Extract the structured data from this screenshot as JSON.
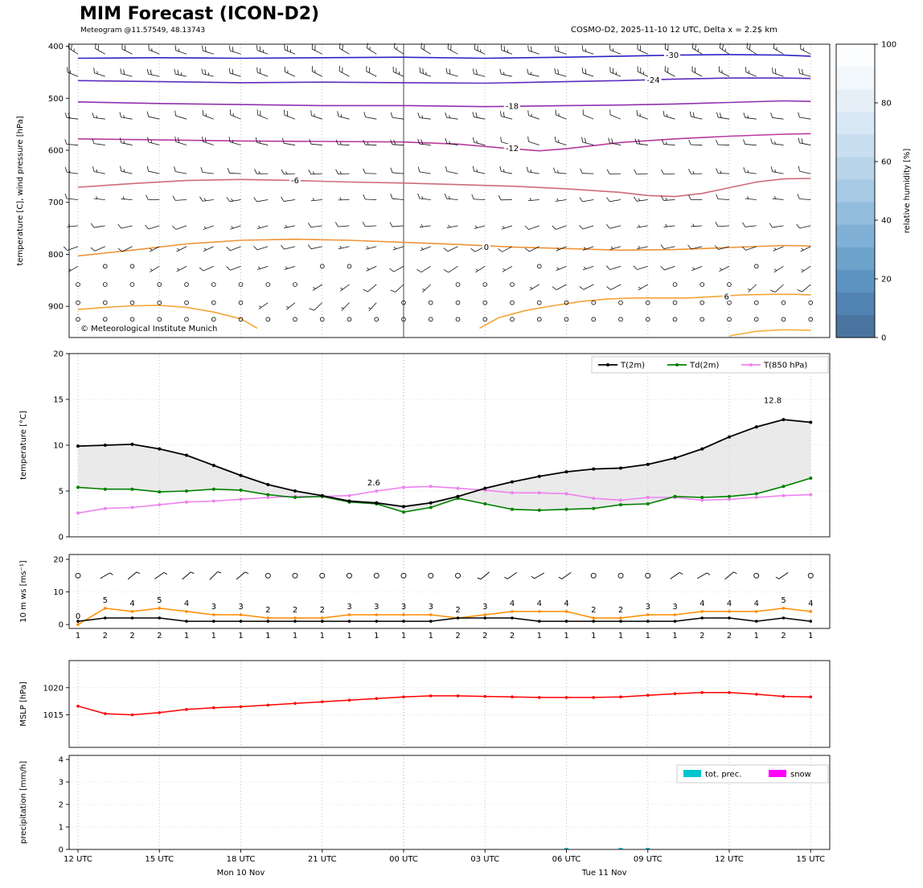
{
  "header": {
    "title": "MIM Forecast (ICON-D2)",
    "subtitle": "Meteogram @11.57549, 48.13743",
    "model_info": "COSMO-D2, 2025-11-10 12 UTC, Delta x = 2.2$ km",
    "watermark": "© Meteorological Institute Munich"
  },
  "time_axis": {
    "hours_span": 27,
    "tick_positions_h": [
      0,
      3,
      6,
      9,
      12,
      15,
      18,
      21,
      24,
      27
    ],
    "tick_labels": [
      "12 UTC",
      "15 UTC",
      "18 UTC",
      "21 UTC",
      "00 UTC",
      "03 UTC",
      "06 UTC",
      "09 UTC",
      "12 UTC",
      "15 UTC"
    ],
    "day_labels": [
      {
        "label": "Mon 10 Nov",
        "pos_h": 6
      },
      {
        "label": "Tue 11 Nov",
        "pos_h": 19.4
      }
    ]
  },
  "chart_data": [
    {
      "id": "upper_air",
      "type": "contour-barbs",
      "ylabel": "temperature [C], wind pressure [hPa]",
      "ylim": [
        960,
        400
      ],
      "yticks": [
        400,
        500,
        600,
        700,
        800,
        900
      ],
      "contours": [
        {
          "label": "-30",
          "color": "#2d23c5",
          "label_h": 21.9,
          "label_p": 417,
          "points": [
            [
              0,
              423
            ],
            [
              3,
              422
            ],
            [
              6,
              423
            ],
            [
              9,
              422
            ],
            [
              12,
              421
            ],
            [
              15,
              423
            ],
            [
              18,
              421
            ],
            [
              20,
              419
            ],
            [
              22,
              417
            ],
            [
              24,
              416
            ],
            [
              26,
              417
            ],
            [
              27,
              419
            ]
          ]
        },
        {
          "label": "-24",
          "color": "#5d2dbf",
          "label_h": 21.2,
          "label_p": 465,
          "points": [
            [
              0,
              466
            ],
            [
              3,
              468
            ],
            [
              6,
              470
            ],
            [
              9,
              469
            ],
            [
              12,
              470
            ],
            [
              15,
              471
            ],
            [
              18,
              468
            ],
            [
              20,
              466
            ],
            [
              22,
              463
            ],
            [
              24,
              461
            ],
            [
              26,
              461
            ],
            [
              27,
              462
            ]
          ]
        },
        {
          "label": "-18",
          "color": "#9031b0",
          "label_h": 16.0,
          "label_p": 515,
          "points": [
            [
              0,
              507
            ],
            [
              3,
              510
            ],
            [
              6,
              512
            ],
            [
              9,
              514
            ],
            [
              12,
              514
            ],
            [
              15,
              516
            ],
            [
              18,
              514
            ],
            [
              20,
              513
            ],
            [
              22,
              511
            ],
            [
              24,
              508
            ],
            [
              26,
              505
            ],
            [
              27,
              506
            ]
          ]
        },
        {
          "label": "-12",
          "color": "#b83a9e",
          "label_h": 16.0,
          "label_p": 596,
          "points": [
            [
              0,
              578
            ],
            [
              3,
              580
            ],
            [
              6,
              582
            ],
            [
              9,
              583
            ],
            [
              12,
              584
            ],
            [
              14,
              588
            ],
            [
              16,
              597
            ],
            [
              17,
              601
            ],
            [
              18,
              597
            ],
            [
              20,
              585
            ],
            [
              22,
              578
            ],
            [
              24,
              573
            ],
            [
              26,
              569
            ],
            [
              27,
              568
            ]
          ]
        },
        {
          "label": "-6",
          "color": "#ce6b79",
          "label_h": 8.0,
          "label_p": 658,
          "points": [
            [
              0,
              671
            ],
            [
              2,
              664
            ],
            [
              4,
              658
            ],
            [
              6,
              656
            ],
            [
              8,
              658
            ],
            [
              10,
              661
            ],
            [
              12,
              663
            ],
            [
              14,
              666
            ],
            [
              16,
              669
            ],
            [
              18,
              674
            ],
            [
              20,
              681
            ],
            [
              21,
              687
            ],
            [
              22,
              689
            ],
            [
              23,
              683
            ],
            [
              24,
              672
            ],
            [
              25,
              661
            ],
            [
              26,
              655
            ],
            [
              27,
              654
            ]
          ]
        },
        {
          "label": "0",
          "color": "#ef9336",
          "label_h": 15.05,
          "label_p": 786,
          "points": [
            [
              0,
              803
            ],
            [
              2,
              792
            ],
            [
              4,
              780
            ],
            [
              6,
              773
            ],
            [
              8,
              771
            ],
            [
              10,
              773
            ],
            [
              12,
              777
            ],
            [
              14,
              781
            ],
            [
              16,
              786
            ],
            [
              18,
              789
            ],
            [
              20,
              792
            ],
            [
              22,
              791
            ],
            [
              24,
              787
            ],
            [
              26,
              783
            ],
            [
              27,
              784
            ]
          ]
        },
        {
          "label": "",
          "color": "#f4a438",
          "label_h": 0,
          "label_p": 0,
          "points": [
            [
              0,
              906
            ],
            [
              1,
              902
            ],
            [
              2,
              899
            ],
            [
              3,
              898
            ],
            [
              4,
              902
            ],
            [
              5,
              911
            ],
            [
              6,
              924
            ],
            [
              6.6,
              942
            ]
          ]
        },
        {
          "label": "6",
          "color": "#f4a438",
          "label_h": 23.9,
          "label_p": 881,
          "points": [
            [
              14.8,
              942
            ],
            [
              15.5,
              922
            ],
            [
              16.5,
              908
            ],
            [
              17.5,
              899
            ],
            [
              18.5,
              891
            ],
            [
              19.5,
              886
            ],
            [
              20.5,
              884
            ],
            [
              21.5,
              884
            ],
            [
              22.5,
              884
            ],
            [
              23.5,
              881
            ],
            [
              24.5,
              878
            ],
            [
              25.5,
              877
            ],
            [
              26.5,
              877
            ],
            [
              27,
              878
            ]
          ]
        },
        {
          "label": "",
          "color": "#f7b03c",
          "label_h": 0,
          "label_p": 0,
          "points": [
            [
              24,
              957
            ],
            [
              25,
              948
            ],
            [
              26,
              945
            ],
            [
              27,
              946
            ]
          ]
        }
      ],
      "barb_rows": [
        {
          "p": 415,
          "dir": 295,
          "kn": 20
        },
        {
          "p": 458,
          "dir": 290,
          "kn": 20
        },
        {
          "p": 540,
          "dir": 285,
          "kn": 15
        },
        {
          "p": 590,
          "dir": 280,
          "kn": 15
        },
        {
          "p": 645,
          "dir": 275,
          "kn": 12
        },
        {
          "p": 695,
          "dir": 268,
          "kn": 10
        },
        {
          "p": 745,
          "dir": 258,
          "kn": 8
        },
        {
          "p": 785,
          "dir": 250,
          "kn": 8
        },
        {
          "p": 823,
          "dir": 245,
          "kn": 6
        },
        {
          "p": 858,
          "dir": 235,
          "kn": 5,
          "calm": [
            [
              0,
              7
            ]
          ]
        },
        {
          "p": 893,
          "dir": 230,
          "kn": 4,
          "calm": [
            [
              0,
              6
            ],
            [
              12,
              27
            ]
          ]
        },
        {
          "p": 925,
          "dir": 0,
          "kn": 0,
          "calm": [
            [
              0,
              27
            ]
          ]
        }
      ],
      "colorbar": {
        "label": "relative humidity [%]",
        "ticks": [
          0,
          20,
          40,
          60,
          80,
          100
        ],
        "colors": [
          "#fbfdfe",
          "#f1f7fb",
          "#e5eff8",
          "#d8e7f4",
          "#c9def0",
          "#b8d4ea",
          "#a6c9e4",
          "#93bddd",
          "#80b0d5",
          "#6da2cb",
          "#5c93c0",
          "#5083b2",
          "#4a74a0"
        ]
      }
    },
    {
      "id": "temperature",
      "type": "line",
      "ylabel": "temperature [°C]",
      "ylim": [
        0,
        20
      ],
      "yticks": [
        0,
        5,
        10,
        15,
        20
      ],
      "series": [
        {
          "name": "T(2m)",
          "color": "#000000",
          "values": [
            9.9,
            10.0,
            10.1,
            9.6,
            8.9,
            7.8,
            6.7,
            5.7,
            5.0,
            4.5,
            3.9,
            3.7,
            3.3,
            3.7,
            4.4,
            5.3,
            6.0,
            6.6,
            7.1,
            7.4,
            7.5,
            7.9,
            8.6,
            9.6,
            10.9,
            12.0,
            12.8,
            12.5
          ]
        },
        {
          "name": "Td(2m)",
          "color": "#008000",
          "values": [
            5.4,
            5.2,
            5.2,
            4.9,
            5.0,
            5.2,
            5.1,
            4.6,
            4.3,
            4.4,
            3.8,
            3.6,
            2.7,
            3.2,
            4.2,
            3.6,
            3.0,
            2.9,
            3.0,
            3.1,
            3.5,
            3.6,
            4.4,
            4.3,
            4.4,
            4.7,
            5.5,
            6.4
          ]
        },
        {
          "name": "T(850 hPa)",
          "color": "#ee82ee",
          "values": [
            2.6,
            3.1,
            3.2,
            3.5,
            3.8,
            3.9,
            4.1,
            4.3,
            4.4,
            4.4,
            4.5,
            5.0,
            5.4,
            5.5,
            5.3,
            5.1,
            4.8,
            4.8,
            4.7,
            4.2,
            4.0,
            4.3,
            4.3,
            4.0,
            4.1,
            4.3,
            4.5,
            4.6
          ]
        }
      ],
      "fill_between": {
        "upper": "T(2m)",
        "lower": "Td(2m)",
        "color": "#d9d9d9"
      },
      "annotations": [
        {
          "text": "12.8",
          "color": "#ff0000",
          "h": 25.6,
          "value": 14.6
        },
        {
          "text": "2.6",
          "color": "#4848d8",
          "h": 10.9,
          "value": 5.6
        }
      ],
      "legend": [
        "T(2m)",
        "Td(2m)",
        "T(850 hPa)"
      ]
    },
    {
      "id": "wind",
      "type": "line",
      "ylabel": "10 m ws [ms⁻¹]",
      "ylim": [
        0,
        20
      ],
      "yticks": [
        0,
        10,
        20
      ],
      "series": [
        {
          "name": "10 m wind speed",
          "color": "#000000",
          "values": [
            1,
            2,
            2,
            2,
            1,
            1,
            1,
            1,
            1,
            1,
            1,
            1,
            1,
            1,
            2,
            2,
            2,
            1,
            1,
            1,
            1,
            1,
            1,
            2,
            2,
            1,
            2,
            1
          ]
        },
        {
          "name": "gusts",
          "color": "#ff8c00",
          "values": [
            0,
            5,
            4,
            5,
            4,
            3,
            3,
            2,
            2,
            2,
            3,
            3,
            3,
            3,
            2,
            3,
            4,
            4,
            4,
            2,
            2,
            3,
            3,
            4,
            4,
            4,
            5,
            4
          ]
        }
      ],
      "direction_symbols": {
        "y_value": 15,
        "dirs": [
          null,
          60,
          50,
          55,
          50,
          45,
          50,
          null,
          null,
          null,
          null,
          null,
          null,
          null,
          null,
          230,
          235,
          240,
          235,
          null,
          null,
          null,
          55,
          60,
          50,
          null,
          235,
          null
        ]
      }
    },
    {
      "id": "mslp",
      "type": "line",
      "ylabel": "MSLP [hPa]",
      "ylim": [
        1009,
        1025
      ],
      "yticks": [
        1015,
        1020
      ],
      "series": [
        {
          "name": "MSLP",
          "color": "#ff0000",
          "values": [
            1016.6,
            1015.2,
            1015.0,
            1015.4,
            1016.0,
            1016.3,
            1016.5,
            1016.8,
            1017.1,
            1017.4,
            1017.7,
            1018.0,
            1018.3,
            1018.5,
            1018.5,
            1018.4,
            1018.3,
            1018.2,
            1018.2,
            1018.2,
            1018.3,
            1018.6,
            1018.9,
            1019.1,
            1019.1,
            1018.8,
            1018.4,
            1018.3
          ]
        }
      ]
    },
    {
      "id": "precipitation",
      "type": "bar",
      "ylabel": "precipitation [mm/h]",
      "ylim": [
        0,
        4
      ],
      "yticks": [
        0,
        1,
        2,
        3,
        4
      ],
      "series": [
        {
          "name": "tot. prec.",
          "color": "#00c5cd",
          "values": [
            0,
            0,
            0,
            0,
            0,
            0,
            0,
            0,
            0,
            0,
            0,
            0,
            0,
            0,
            0,
            0,
            0,
            0,
            0.02,
            0,
            0.03,
            0.02,
            0,
            0,
            0,
            0,
            0,
            0
          ]
        },
        {
          "name": "snow",
          "color": "#ff00ff",
          "values": [
            0,
            0,
            0,
            0,
            0,
            0,
            0,
            0,
            0,
            0,
            0,
            0,
            0,
            0,
            0,
            0,
            0,
            0,
            0,
            0,
            0,
            0,
            0,
            0,
            0,
            0,
            0,
            0
          ]
        }
      ],
      "legend": [
        "tot. prec.",
        "snow"
      ]
    }
  ]
}
